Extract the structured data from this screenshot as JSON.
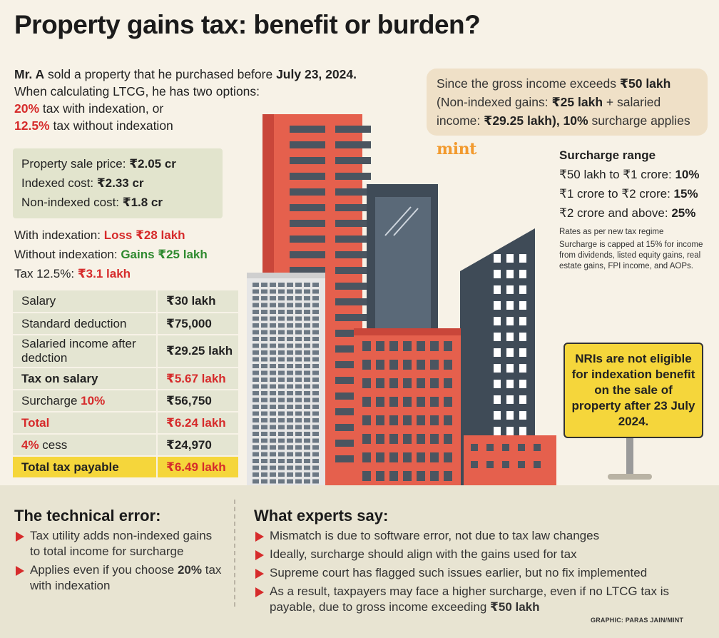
{
  "title": "Property gains tax: benefit or burden?",
  "intro": {
    "line1_lead": "Mr. A",
    "line1_mid": " sold a property that he purchased before ",
    "line1_date": "July 23, 2024.",
    "line2": "When calculating LTCG, he has two options:",
    "opt1_pct": "20%",
    "opt1_text": " tax with indexation, or",
    "opt2_pct": "12.5%",
    "opt2_text": " tax without indexation"
  },
  "sale_box": {
    "price_label": "Property sale price: ",
    "price_value": "₹2.05 cr",
    "indexed_label": "Indexed cost: ",
    "indexed_value": "₹2.33 cr",
    "nonindexed_label": "Non-indexed cost: ",
    "nonindexed_value": "₹1.8 cr"
  },
  "outcomes": {
    "with_label": "With indexation: ",
    "with_value": "Loss ₹28 lakh",
    "without_label": "Without indexation: ",
    "without_value": "Gains ₹25 lakh",
    "tax_label": "Tax 12.5%: ",
    "tax_value": "₹3.1 lakh"
  },
  "tax_table": {
    "salary_label": "Salary",
    "salary_value": "₹30 lakh",
    "std_label": "Standard deduction",
    "std_value": "₹75,000",
    "sal_after_label": "Salaried income after dedction",
    "sal_after_value": "₹29.25 lakh",
    "tax_salary_label": "Tax on salary",
    "tax_salary_value": "₹5.67 lakh",
    "surcharge_label": "Surcharge ",
    "surcharge_pct": "10%",
    "surcharge_value": "₹56,750",
    "total_label": "Total",
    "total_value": "₹6.24 lakh",
    "cess_pct": "4%",
    "cess_label": " cess",
    "cess_value": "₹24,970",
    "payable_label": "Total tax payable",
    "payable_value": "₹6.49 lakh"
  },
  "gross_note": {
    "a": "Since the gross income exceeds ",
    "b": "₹50 lakh",
    "c": "(Non-indexed gains: ",
    "d": "₹25 lakh",
    "e": " + salaried income: ",
    "f": "₹29.25 lakh), 10%",
    "g": " surcharge applies"
  },
  "logo": "mint",
  "surcharge": {
    "heading": "Surcharge range",
    "r1_label": "₹50 lakh to ₹1 crore: ",
    "r1_value": "10%",
    "r2_label": "₹1 crore to ₹2 crore: ",
    "r2_value": "15%",
    "r3_label": "₹2 crore and above: ",
    "r3_value": "25%",
    "note1": "Rates as per new tax regime",
    "note2": "Surcharge is capped at 15% for income from dividends, listed equity gains, real estate gains, FPI income, and AOPs."
  },
  "nri_sign": "NRIs are not eligible for indexation benefit on the sale of property after 23 July 2024.",
  "technical": {
    "heading": "The technical error:",
    "item1": "Tax utility adds non-indexed gains to total income for surcharge",
    "item2_a": "Applies even if you choose ",
    "item2_b": "20%",
    "item2_c": " tax with indexation"
  },
  "experts": {
    "heading": "What experts say:",
    "item1": "Mismatch is due to software error, not due to tax law changes",
    "item2": "Ideally, surcharge should align with the gains used for tax",
    "item3": "Supreme court has flagged such issues earlier, but no fix implemented",
    "item4_a": "As a result, taxpayers may face a higher surcharge, even if no LTCG tax is payable, due to gross income exceeding ",
    "item4_b": "₹50 lakh"
  },
  "credit": "GRAPHIC: PARAS JAIN/MINT",
  "colors": {
    "red": "#d62b2b",
    "green": "#2f8a2f",
    "yellow": "#f5d63b",
    "building_red": "#e5604d",
    "building_dark": "#3f4b57",
    "building_grey": "#d9d9d9"
  }
}
